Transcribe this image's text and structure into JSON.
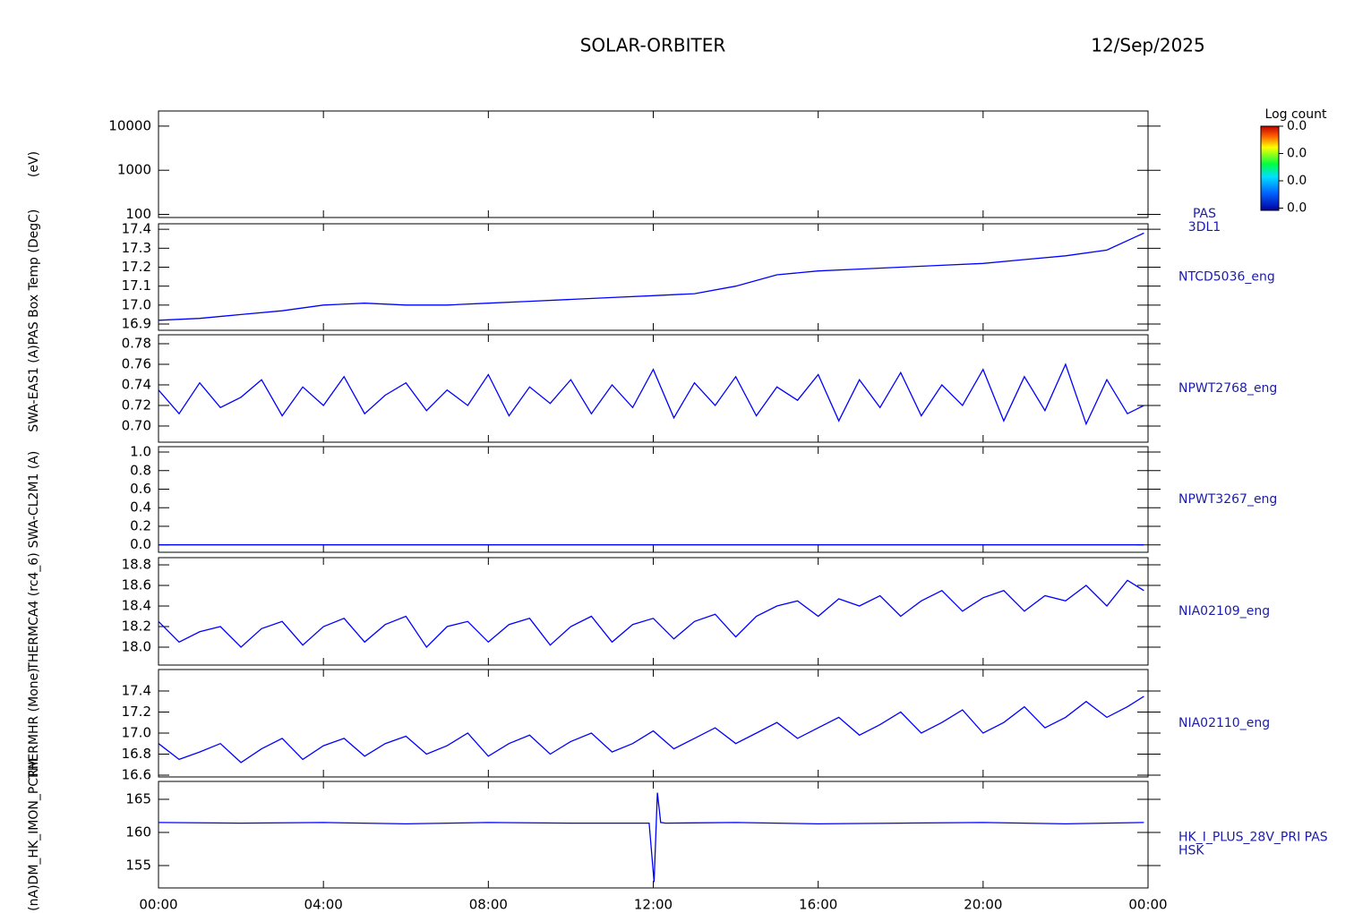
{
  "title": "SOLAR-ORBITER",
  "date": "12/Sep/2025",
  "chart_data": [
    {
      "type": "spectrogram",
      "ylabel": "(eV)",
      "label": [
        "PAS",
        "3DL1"
      ],
      "log": true,
      "xlim": [
        0,
        24
      ],
      "ylim": [
        85,
        22000
      ],
      "yticks": [
        100,
        1000,
        10000
      ],
      "colorbar": {
        "title": "Log count",
        "ticks": [
          "0.0",
          "0.0",
          "0.0",
          "0.0"
        ]
      }
    },
    {
      "type": "line",
      "ylabel": "PAS Box Temp (DegC)",
      "label": [
        "NTCD5036_eng"
      ],
      "color": "#0000ff",
      "xlim": [
        0,
        24
      ],
      "ylim": [
        16.867,
        17.429
      ],
      "yticks": [
        16.9,
        {
          "value": 17,
          "label": "17.0"
        },
        17.1,
        17.2,
        17.3,
        17.4
      ],
      "x": [
        0,
        1,
        2,
        3,
        4,
        5,
        6,
        7,
        8,
        9,
        10,
        11,
        12,
        13,
        14,
        15,
        16,
        17,
        18,
        19,
        20,
        21,
        22,
        23,
        23.9
      ],
      "values": [
        16.92,
        16.93,
        16.95,
        16.97,
        17.0,
        17.01,
        17.0,
        17.0,
        17.01,
        17.02,
        17.03,
        17.04,
        17.05,
        17.06,
        17.1,
        17.16,
        17.18,
        17.19,
        17.2,
        17.21,
        17.22,
        17.24,
        17.26,
        17.29,
        17.38
      ]
    },
    {
      "type": "line",
      "ylabel": "SWA-EAS1 (A)",
      "label": [
        "NPWT2768_eng"
      ],
      "color": "#0000ff",
      "xlim": [
        0,
        24
      ],
      "ylim": [
        0.6843,
        0.7887
      ],
      "yticks": [
        {
          "value": 0.7,
          "label": "0.70"
        },
        0.72,
        0.74,
        0.76,
        0.78
      ],
      "x": [
        0,
        0.5,
        1,
        1.5,
        2,
        2.5,
        3,
        3.5,
        4,
        4.5,
        5,
        5.5,
        6,
        6.5,
        7,
        7.5,
        8,
        8.5,
        9,
        9.5,
        10,
        10.5,
        11,
        11.5,
        12,
        12.5,
        13,
        13.5,
        14,
        14.5,
        15,
        15.5,
        16,
        16.5,
        17,
        17.5,
        18,
        18.5,
        19,
        19.5,
        20,
        20.5,
        21,
        21.5,
        22,
        22.5,
        23,
        23.5,
        23.9
      ],
      "values": [
        0.735,
        0.712,
        0.742,
        0.718,
        0.728,
        0.745,
        0.71,
        0.738,
        0.72,
        0.748,
        0.712,
        0.73,
        0.742,
        0.715,
        0.735,
        0.72,
        0.75,
        0.71,
        0.738,
        0.722,
        0.745,
        0.712,
        0.74,
        0.718,
        0.755,
        0.708,
        0.742,
        0.72,
        0.748,
        0.71,
        0.738,
        0.725,
        0.75,
        0.705,
        0.745,
        0.718,
        0.752,
        0.71,
        0.74,
        0.72,
        0.755,
        0.705,
        0.748,
        0.715,
        0.76,
        0.702,
        0.745,
        0.712,
        0.72
      ]
    },
    {
      "type": "line",
      "ylabel": "SWA-CL2M1 (A)",
      "label": [
        "NPWT3267_eng"
      ],
      "color": "#0000ff",
      "xlim": [
        0,
        24
      ],
      "ylim": [
        -0.08,
        1.058
      ],
      "yticks": [
        {
          "value": 0,
          "label": "0.0"
        },
        0.2,
        0.4,
        0.6,
        0.8,
        {
          "value": 1,
          "label": "1.0"
        }
      ],
      "x": [
        0,
        23.9
      ],
      "values": [
        0,
        0
      ]
    },
    {
      "type": "line",
      "ylabel": "THERMCA4 (rc4_6)",
      "label": [
        "NIA02109_eng"
      ],
      "color": "#0000ff",
      "xlim": [
        0,
        24
      ],
      "ylim": [
        17.826,
        18.87
      ],
      "yticks": [
        {
          "value": 18,
          "label": "18.0"
        },
        18.2,
        18.4,
        18.6,
        18.8
      ],
      "x": [
        0,
        0.5,
        1,
        1.5,
        2,
        2.5,
        3,
        3.5,
        4,
        4.5,
        5,
        5.5,
        6,
        6.5,
        7,
        7.5,
        8,
        8.5,
        9,
        9.5,
        10,
        10.5,
        11,
        11.5,
        12,
        12.5,
        13,
        13.5,
        14,
        14.5,
        15,
        15.5,
        16,
        16.5,
        17,
        17.5,
        18,
        18.5,
        19,
        19.5,
        20,
        20.5,
        21,
        21.5,
        22,
        22.5,
        23,
        23.5,
        23.9
      ],
      "values": [
        18.25,
        18.05,
        18.15,
        18.2,
        18.0,
        18.18,
        18.25,
        18.02,
        18.2,
        18.28,
        18.05,
        18.22,
        18.3,
        18.0,
        18.2,
        18.25,
        18.05,
        18.22,
        18.28,
        18.02,
        18.2,
        18.3,
        18.05,
        18.22,
        18.28,
        18.08,
        18.25,
        18.32,
        18.1,
        18.3,
        18.4,
        18.45,
        18.3,
        18.47,
        18.4,
        18.5,
        18.3,
        18.45,
        18.55,
        18.35,
        18.48,
        18.55,
        18.35,
        18.5,
        18.45,
        18.6,
        18.4,
        18.65,
        18.55
      ]
    },
    {
      "type": "line",
      "ylabel": "THERMHR (Mone)",
      "label": [
        "NIA02110_eng"
      ],
      "color": "#0000ff",
      "xlim": [
        0,
        24
      ],
      "ylim": [
        16.583,
        17.604
      ],
      "yticks": [
        16.6,
        16.8,
        {
          "value": 17,
          "label": "17.0"
        },
        17.2,
        17.4
      ],
      "x": [
        0,
        0.5,
        1,
        1.5,
        2,
        2.5,
        3,
        3.5,
        4,
        4.5,
        5,
        5.5,
        6,
        6.5,
        7,
        7.5,
        8,
        8.5,
        9,
        9.5,
        10,
        10.5,
        11,
        11.5,
        12,
        12.5,
        13,
        13.5,
        14,
        14.5,
        15,
        15.5,
        16,
        16.5,
        17,
        17.5,
        18,
        18.5,
        19,
        19.5,
        20,
        20.5,
        21,
        21.5,
        22,
        22.5,
        23,
        23.5,
        23.9
      ],
      "values": [
        16.9,
        16.75,
        16.82,
        16.9,
        16.72,
        16.85,
        16.95,
        16.75,
        16.88,
        16.95,
        16.78,
        16.9,
        16.97,
        16.8,
        16.88,
        17.0,
        16.78,
        16.9,
        16.98,
        16.8,
        16.92,
        17.0,
        16.82,
        16.9,
        17.02,
        16.85,
        16.95,
        17.05,
        16.9,
        17.0,
        17.1,
        16.95,
        17.05,
        17.15,
        16.98,
        17.08,
        17.2,
        17.0,
        17.1,
        17.22,
        17.0,
        17.1,
        17.25,
        17.05,
        17.15,
        17.3,
        17.15,
        17.25,
        17.35
      ]
    },
    {
      "type": "line",
      "ylabel": "(nA)DM_HK_IMON_PCRM",
      "label": [
        "HK_I_PLUS_28V_PRI PAS",
        "HSK"
      ],
      "color": "#0000ff",
      "xlim": [
        0,
        24
      ],
      "ylim": [
        151.62,
        167.7
      ],
      "yticks": [
        155,
        160,
        165
      ],
      "x": [
        0,
        2,
        4,
        6,
        8,
        10,
        11.9,
        12.02,
        12.1,
        12.18,
        12.3,
        14,
        16,
        18,
        20,
        22,
        23.9
      ],
      "values": [
        161.5,
        161.4,
        161.5,
        161.3,
        161.5,
        161.4,
        161.4,
        152.5,
        166,
        161.5,
        161.4,
        161.5,
        161.3,
        161.4,
        161.5,
        161.3,
        161.5
      ],
      "xticks": [
        {
          "value": 0,
          "label": "00:00"
        },
        {
          "value": 4,
          "label": "04:00"
        },
        {
          "value": 8,
          "label": "08:00"
        },
        {
          "value": 12,
          "label": "12:00"
        },
        {
          "value": 16,
          "label": "16:00"
        },
        {
          "value": 20,
          "label": "20:00"
        },
        {
          "value": 24,
          "label": "00:00"
        }
      ]
    }
  ]
}
